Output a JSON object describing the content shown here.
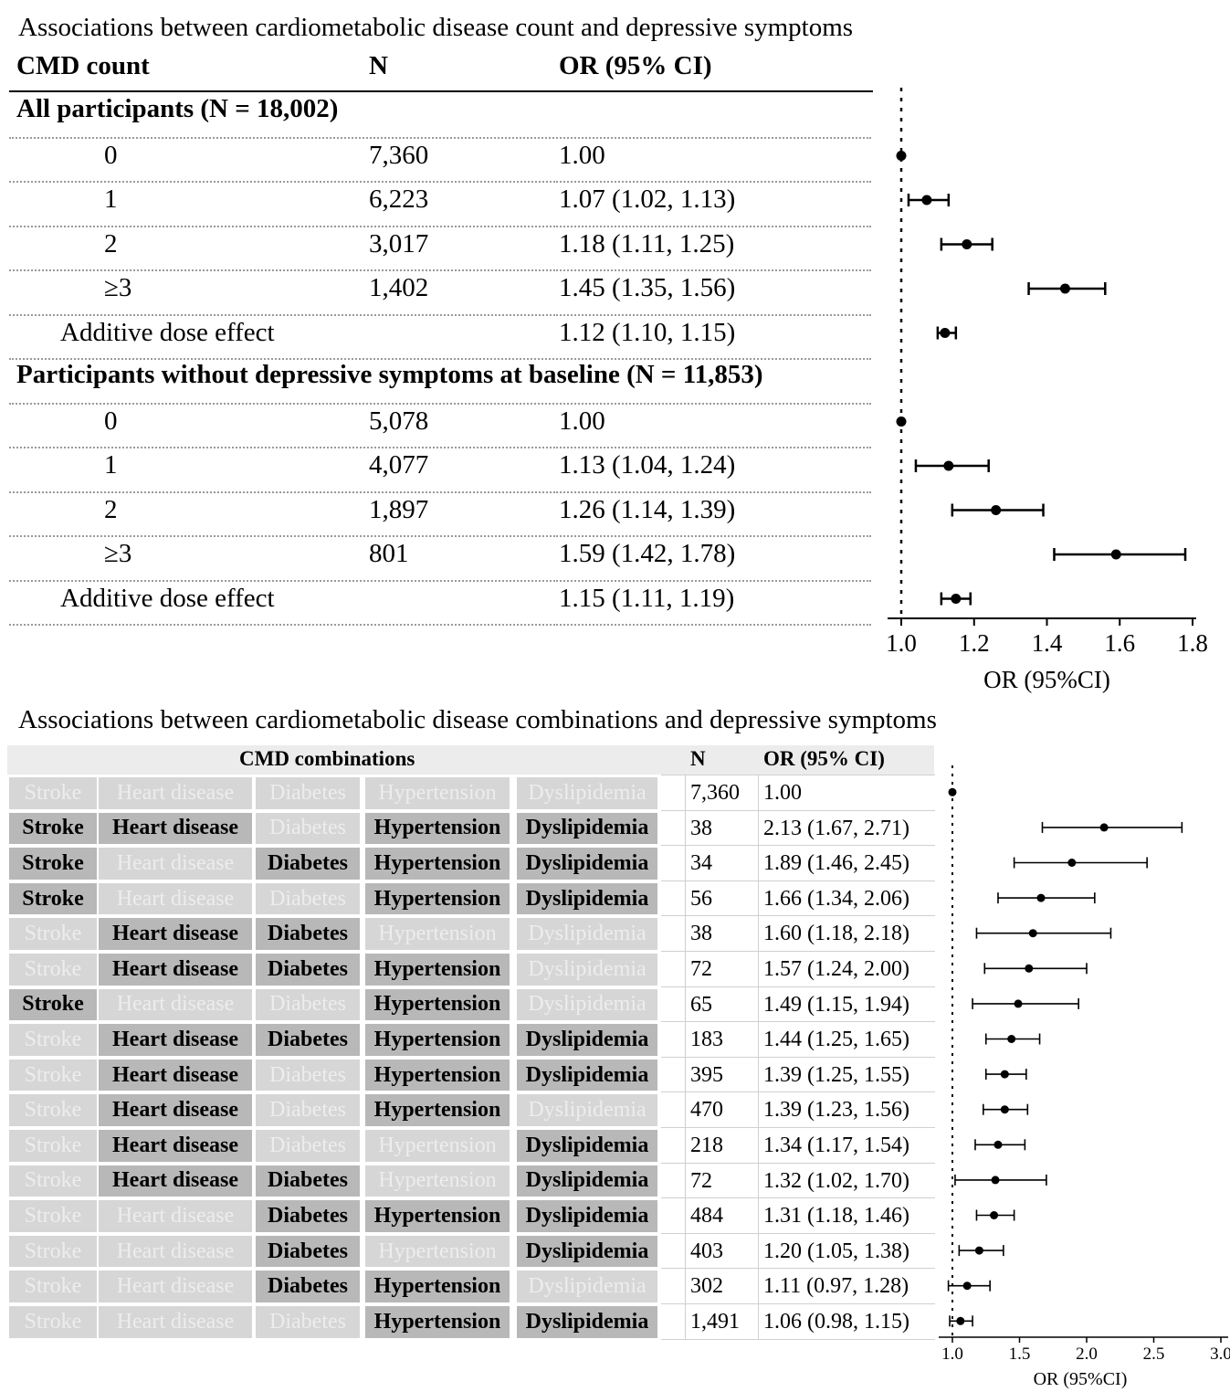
{
  "chart_data": [
    {
      "type": "forest",
      "title": "Associations between cardiometabolic disease count and depressive symptoms",
      "columns": [
        "CMD count",
        "N",
        "OR (95% CI)"
      ],
      "xlabel": "OR (95%CI)",
      "xlim": [
        1.0,
        1.8
      ],
      "xticks": [
        "1.0",
        "1.2",
        "1.4",
        "1.6",
        "1.8"
      ],
      "reference_line": 1.0,
      "groups": [
        {
          "label": "All participants (N = 18,002)",
          "rows": [
            {
              "label": "0",
              "n": "7,360",
              "or_text": "1.00",
              "or": 1.0,
              "lo": 1.0,
              "hi": 1.0
            },
            {
              "label": "1",
              "n": "6,223",
              "or_text": "1.07 (1.02, 1.13)",
              "or": 1.07,
              "lo": 1.02,
              "hi": 1.13
            },
            {
              "label": "2",
              "n": "3,017",
              "or_text": "1.18 (1.11, 1.25)",
              "or": 1.18,
              "lo": 1.11,
              "hi": 1.25
            },
            {
              "label": "≥3",
              "n": "1,402",
              "or_text": "1.45 (1.35, 1.56)",
              "or": 1.45,
              "lo": 1.35,
              "hi": 1.56
            },
            {
              "label": "Additive dose effect",
              "n": "",
              "or_text": "1.12 (1.10, 1.15)",
              "or": 1.12,
              "lo": 1.1,
              "hi": 1.15
            }
          ]
        },
        {
          "label": "Participants without depressive symptoms at baseline (N = 11,853)",
          "rows": [
            {
              "label": "0",
              "n": "5,078",
              "or_text": "1.00",
              "or": 1.0,
              "lo": 1.0,
              "hi": 1.0
            },
            {
              "label": "1",
              "n": "4,077",
              "or_text": "1.13 (1.04, 1.24)",
              "or": 1.13,
              "lo": 1.04,
              "hi": 1.24
            },
            {
              "label": "2",
              "n": "1,897",
              "or_text": "1.26 (1.14, 1.39)",
              "or": 1.26,
              "lo": 1.14,
              "hi": 1.39
            },
            {
              "label": "≥3",
              "n": "801",
              "or_text": "1.59 (1.42, 1.78)",
              "or": 1.59,
              "lo": 1.42,
              "hi": 1.78
            },
            {
              "label": "Additive dose effect",
              "n": "",
              "or_text": "1.15 (1.11, 1.19)",
              "or": 1.15,
              "lo": 1.11,
              "hi": 1.19
            }
          ]
        }
      ]
    },
    {
      "type": "forest",
      "title": "Associations between cardiometabolic disease combinations and depressive symptoms",
      "columns": [
        "CMD combinations",
        "N",
        "OR (95% CI)"
      ],
      "diseases": [
        "Stroke",
        "Heart disease",
        "Diabetes",
        "Hypertension",
        "Dyslipidemia"
      ],
      "xlabel": "OR (95%CI)",
      "xlim": [
        1.0,
        3.0
      ],
      "xticks": [
        "1.0",
        "1.5",
        "2.0",
        "2.5",
        "3.0"
      ],
      "reference_line": 1.0,
      "rows": [
        {
          "flags": [
            0,
            0,
            0,
            0,
            0
          ],
          "n": "7,360",
          "or_text": "1.00",
          "or": 1.0,
          "lo": 1.0,
          "hi": 1.0
        },
        {
          "flags": [
            1,
            1,
            0,
            1,
            1
          ],
          "n": "38",
          "or_text": "2.13 (1.67, 2.71)",
          "or": 2.13,
          "lo": 1.67,
          "hi": 2.71
        },
        {
          "flags": [
            1,
            0,
            1,
            1,
            1
          ],
          "n": "34",
          "or_text": "1.89 (1.46, 2.45)",
          "or": 1.89,
          "lo": 1.46,
          "hi": 2.45
        },
        {
          "flags": [
            1,
            0,
            0,
            1,
            1
          ],
          "n": "56",
          "or_text": "1.66 (1.34, 2.06)",
          "or": 1.66,
          "lo": 1.34,
          "hi": 2.06
        },
        {
          "flags": [
            0,
            1,
            1,
            0,
            0
          ],
          "n": "38",
          "or_text": "1.60 (1.18, 2.18)",
          "or": 1.6,
          "lo": 1.18,
          "hi": 2.18
        },
        {
          "flags": [
            0,
            1,
            1,
            1,
            0
          ],
          "n": "72",
          "or_text": "1.57 (1.24, 2.00)",
          "or": 1.57,
          "lo": 1.24,
          "hi": 2.0
        },
        {
          "flags": [
            1,
            0,
            0,
            1,
            0
          ],
          "n": "65",
          "or_text": "1.49 (1.15, 1.94)",
          "or": 1.49,
          "lo": 1.15,
          "hi": 1.94
        },
        {
          "flags": [
            0,
            1,
            1,
            1,
            1
          ],
          "n": "183",
          "or_text": "1.44 (1.25, 1.65)",
          "or": 1.44,
          "lo": 1.25,
          "hi": 1.65
        },
        {
          "flags": [
            0,
            1,
            0,
            1,
            1
          ],
          "n": "395",
          "or_text": "1.39 (1.25, 1.55)",
          "or": 1.39,
          "lo": 1.25,
          "hi": 1.55
        },
        {
          "flags": [
            0,
            1,
            0,
            1,
            0
          ],
          "n": "470",
          "or_text": "1.39 (1.23, 1.56)",
          "or": 1.39,
          "lo": 1.23,
          "hi": 1.56
        },
        {
          "flags": [
            0,
            1,
            0,
            0,
            1
          ],
          "n": "218",
          "or_text": "1.34 (1.17, 1.54)",
          "or": 1.34,
          "lo": 1.17,
          "hi": 1.54
        },
        {
          "flags": [
            0,
            1,
            1,
            0,
            1
          ],
          "n": "72",
          "or_text": "1.32 (1.02, 1.70)",
          "or": 1.32,
          "lo": 1.02,
          "hi": 1.7
        },
        {
          "flags": [
            0,
            0,
            1,
            1,
            1
          ],
          "n": "484",
          "or_text": "1.31 (1.18, 1.46)",
          "or": 1.31,
          "lo": 1.18,
          "hi": 1.46
        },
        {
          "flags": [
            0,
            0,
            1,
            0,
            1
          ],
          "n": "403",
          "or_text": "1.20 (1.05, 1.38)",
          "or": 1.2,
          "lo": 1.05,
          "hi": 1.38
        },
        {
          "flags": [
            0,
            0,
            1,
            1,
            0
          ],
          "n": "302",
          "or_text": "1.11 (0.97, 1.28)",
          "or": 1.11,
          "lo": 0.97,
          "hi": 1.28
        },
        {
          "flags": [
            0,
            0,
            0,
            1,
            1
          ],
          "n": "1,491",
          "or_text": "1.06 (0.98, 1.15)",
          "or": 1.06,
          "lo": 0.98,
          "hi": 1.15
        }
      ]
    }
  ]
}
